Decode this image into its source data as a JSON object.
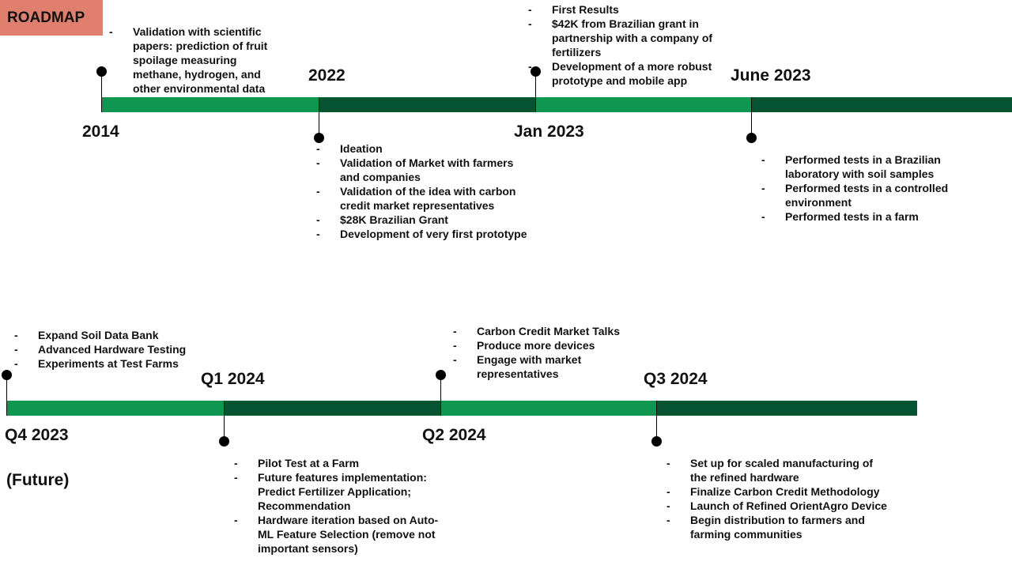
{
  "title": "ROADMAP",
  "future_label": "(Future)",
  "milestones": [
    {
      "label": "2014",
      "bullets": [
        "Validation with scientific papers: prediction of fruit spoilage measuring methane, hydrogen, and other environmental data"
      ]
    },
    {
      "label": "2022",
      "bullets": [
        "Ideation",
        "Validation of Market with farmers and companies",
        "Validation of the idea with carbon credit market representatives",
        "$28K Brazilian Grant",
        "Development of very first prototype"
      ]
    },
    {
      "label": "Jan 2023",
      "bullets": [
        "First Results",
        "$42K from Brazilian grant in partnership with a company of fertilizers",
        "Development of a more robust prototype and mobile app"
      ]
    },
    {
      "label": "June 2023",
      "bullets": [
        "Performed tests in a Brazilian laboratory with soil samples",
        "Performed tests in a controlled environment",
        "Performed tests in a farm"
      ]
    },
    {
      "label": "Q4 2023",
      "bullets": [
        "Expand Soil Data Bank",
        "Advanced Hardware Testing",
        "Experiments at Test Farms"
      ]
    },
    {
      "label": "Q1 2024",
      "bullets": [
        "Pilot Test at a Farm",
        "Future features implementation: Predict Fertilizer Application; Recommendation",
        "Hardware iteration based on Auto-ML Feature Selection (remove not important sensors)"
      ]
    },
    {
      "label": "Q2 2024",
      "bullets": [
        "Carbon Credit Market Talks",
        "Produce more devices",
        "Engage with market representatives"
      ]
    },
    {
      "label": "Q3 2024",
      "bullets": [
        "Set up for scaled manufacturing of the refined hardware",
        "Finalize Carbon Credit Methodology",
        "Launch of Refined OrientAgro Device",
        "Begin distribution to farmers and farming communities"
      ]
    }
  ]
}
